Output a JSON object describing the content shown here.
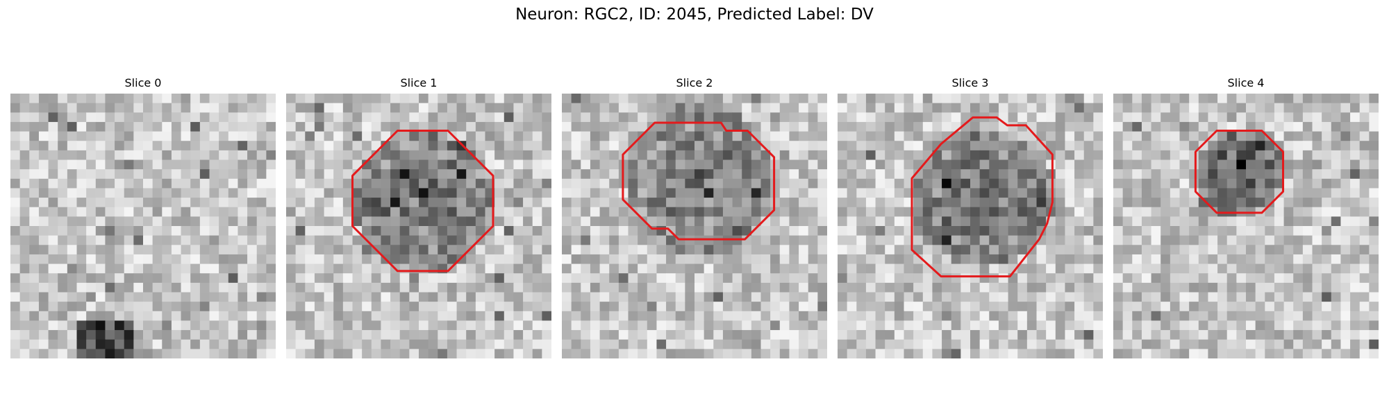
{
  "figure_title": "Neuron: RGC2, ID: 2045, Predicted Label: DV",
  "panels": [
    {
      "title": "Slice 0",
      "cell_darkness": 0.0,
      "outline": null,
      "texture_seed": 11
    },
    {
      "title": "Slice 1",
      "cell_darkness": 0.55,
      "outline": [
        [
          42,
          14
        ],
        [
          61,
          14
        ],
        [
          78,
          31
        ],
        [
          78,
          50
        ],
        [
          61,
          67
        ],
        [
          42,
          67
        ],
        [
          25,
          50
        ],
        [
          25,
          31
        ]
      ],
      "texture_seed": 23
    },
    {
      "title": "Slice 2",
      "cell_darkness": 0.5,
      "outline": [
        [
          35,
          11
        ],
        [
          60,
          11
        ],
        [
          62,
          14
        ],
        [
          70,
          14
        ],
        [
          80,
          24
        ],
        [
          80,
          44
        ],
        [
          69,
          55
        ],
        [
          44,
          55
        ],
        [
          40,
          51
        ],
        [
          34,
          51
        ],
        [
          23,
          40
        ],
        [
          23,
          23
        ]
      ],
      "texture_seed": 37
    },
    {
      "title": "Slice 3",
      "cell_darkness": 0.6,
      "outline": [
        [
          51,
          9
        ],
        [
          60,
          9
        ],
        [
          64,
          12
        ],
        [
          71,
          12
        ],
        [
          81,
          23
        ],
        [
          81,
          41
        ],
        [
          79,
          49
        ],
        [
          76,
          55
        ],
        [
          65,
          69
        ],
        [
          39,
          69
        ],
        [
          28,
          59
        ],
        [
          28,
          32
        ],
        [
          39,
          19
        ]
      ],
      "texture_seed": 41
    },
    {
      "title": "Slice 4",
      "cell_darkness": 0.75,
      "outline": [
        [
          39,
          14
        ],
        [
          56,
          14
        ],
        [
          64,
          22
        ],
        [
          64,
          37
        ],
        [
          56,
          45
        ],
        [
          39,
          45
        ],
        [
          31,
          37
        ],
        [
          31,
          22
        ]
      ],
      "texture_seed": 53
    }
  ],
  "outline_color": "#e41a1c"
}
